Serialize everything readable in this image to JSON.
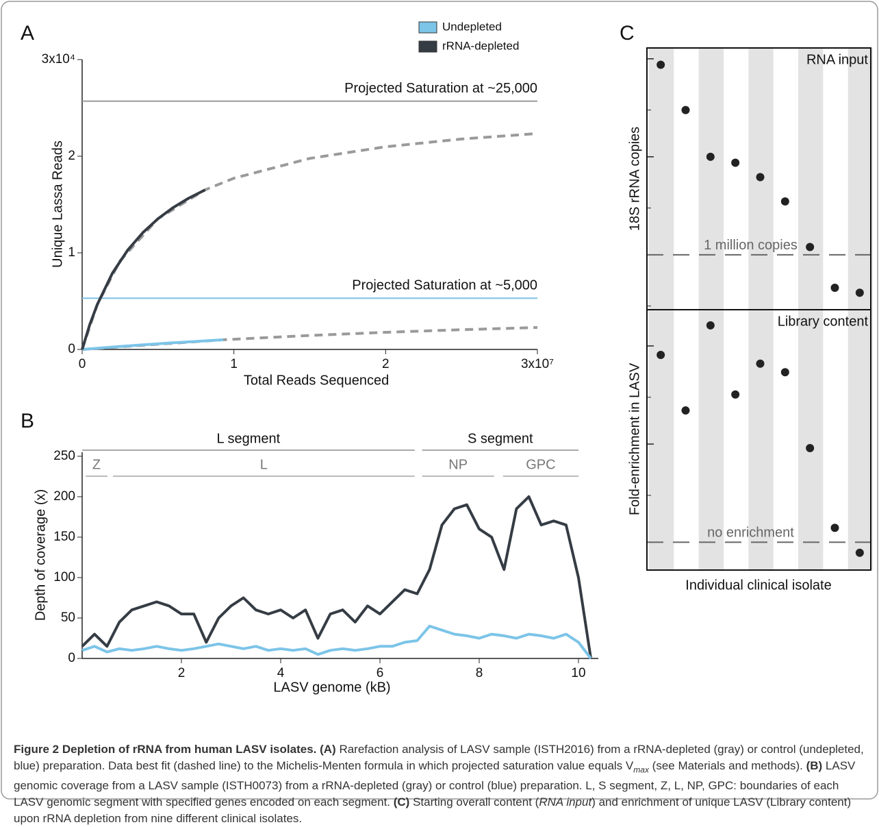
{
  "chart_data": [
    {
      "type": "line",
      "panel_label": "A",
      "x_label": "Total Reads Sequenced",
      "y_label": "Unique Lassa Reads",
      "xlim": [
        0,
        3
      ],
      "ylim": [
        0,
        3
      ],
      "xticks": [
        0,
        1,
        2,
        {
          "value": 3,
          "label": "3x10⁷"
        }
      ],
      "yticks": [
        0,
        1,
        2,
        {
          "value": 3,
          "label": "3x10⁴"
        }
      ],
      "legend": "top",
      "reference_lines": [
        {
          "label": "Projected Saturation at ~25,000",
          "value": 2.57,
          "color": "#9a9a9a"
        },
        {
          "label": "Projected Saturation at ~5,000",
          "value": 0.53,
          "color": "#7cc4e8"
        }
      ],
      "series": [
        {
          "color": "#9a9a9a",
          "dash": true,
          "x": [
            0,
            0.1,
            0.25,
            0.5,
            0.81,
            1,
            1.5,
            2,
            2.5,
            3
          ],
          "values": [
            0,
            0.467,
            0.918,
            1.353,
            1.652,
            1.772,
            1.977,
            2.098,
            2.178,
            2.235
          ]
        },
        {
          "color": "#9a9a9a",
          "dash": true,
          "x": [
            0,
            0.93,
            1.5,
            2,
            2.5,
            3
          ],
          "values": [
            0,
            0.1,
            0.145,
            0.177,
            0.204,
            0.227
          ]
        },
        {
          "name": "Undepleted",
          "color": "#7cc4e8",
          "x": [
            0,
            0.2,
            0.4,
            0.6,
            0.8,
            0.93
          ],
          "values": [
            0,
            0.025,
            0.048,
            0.069,
            0.088,
            0.1
          ]
        },
        {
          "name": "rRNA-depleted",
          "color": "#353c44",
          "x": [
            0,
            0.05,
            0.1,
            0.2,
            0.3,
            0.4,
            0.5,
            0.6,
            0.7,
            0.81
          ],
          "values": [
            0,
            0.257,
            0.467,
            0.791,
            1.028,
            1.209,
            1.353,
            1.469,
            1.564,
            1.652
          ]
        }
      ]
    },
    {
      "type": "line",
      "panel_label": "B",
      "x_label": "LASV genome (kB)",
      "y_label": "Depth of coverage (x)",
      "xlim": [
        0,
        10.4
      ],
      "ylim": [
        0,
        255
      ],
      "xticks": [
        2,
        4,
        6,
        8,
        10
      ],
      "yticks": [
        0,
        50,
        100,
        150,
        200,
        250
      ],
      "segments": [
        {
          "label": "L segment",
          "start": 0,
          "end": 6.7
        },
        {
          "label": "S segment",
          "start": 6.85,
          "end": 10.0
        }
      ],
      "genes": [
        {
          "label": "Z",
          "start": 0.07,
          "end": 0.51
        },
        {
          "label": "L",
          "start": 0.62,
          "end": 6.7
        },
        {
          "label": "NP",
          "start": 6.85,
          "end": 8.3
        },
        {
          "label": "GPC",
          "start": 8.48,
          "end": 10.0
        }
      ],
      "series": [
        {
          "color": "#353c44",
          "x": [
            0,
            0.25,
            0.5,
            0.75,
            1,
            1.25,
            1.5,
            1.75,
            2,
            2.25,
            2.5,
            2.75,
            3,
            3.25,
            3.5,
            3.75,
            4,
            4.25,
            4.5,
            4.75,
            5,
            5.25,
            5.5,
            5.75,
            6,
            6.25,
            6.5,
            6.75,
            7,
            7.25,
            7.5,
            7.75,
            8,
            8.25,
            8.5,
            8.75,
            9,
            9.25,
            9.5,
            9.75,
            10,
            10.25
          ],
          "values": [
            15,
            30,
            15,
            45,
            60,
            65,
            70,
            65,
            55,
            55,
            20,
            50,
            65,
            75,
            60,
            55,
            60,
            50,
            60,
            25,
            55,
            60,
            45,
            65,
            55,
            70,
            85,
            80,
            110,
            165,
            185,
            190,
            160,
            150,
            110,
            185,
            200,
            165,
            170,
            165,
            100,
            0
          ]
        },
        {
          "color": "#7cc4e8",
          "x": [
            0,
            0.25,
            0.5,
            0.75,
            1,
            1.25,
            1.5,
            1.75,
            2,
            2.25,
            2.5,
            2.75,
            3,
            3.25,
            3.5,
            3.75,
            4,
            4.25,
            4.5,
            4.75,
            5,
            5.25,
            5.5,
            5.75,
            6,
            6.25,
            6.5,
            6.75,
            7,
            7.25,
            7.5,
            7.75,
            8,
            8.25,
            8.5,
            8.75,
            9,
            9.25,
            9.5,
            9.75,
            10,
            10.25
          ],
          "values": [
            10,
            15,
            8,
            12,
            10,
            12,
            15,
            12,
            10,
            12,
            15,
            18,
            15,
            12,
            15,
            10,
            12,
            10,
            12,
            5,
            10,
            12,
            10,
            12,
            15,
            15,
            20,
            22,
            40,
            35,
            30,
            28,
            25,
            30,
            28,
            25,
            30,
            28,
            25,
            30,
            20,
            0
          ]
        }
      ]
    },
    {
      "type": "dot",
      "panel_label": "C",
      "y_label": "18S rRNA copies",
      "annotation": "RNA input",
      "log_y": true,
      "ylim": [
        275000,
        129000000
      ],
      "yticks": [
        1000000,
        10000000,
        100000000
      ],
      "minor_yticks": [
        300000,
        3000000,
        30000000
      ],
      "reference_lines": [
        {
          "label": "1 million copies",
          "value": 1000000,
          "color": "#666666"
        }
      ],
      "categories": [
        null,
        null,
        null,
        null,
        null,
        null,
        null,
        null,
        null
      ],
      "values": [
        87000000,
        30000000,
        10000000,
        8700000,
        6200000,
        3500000,
        1200000,
        460000,
        410000
      ],
      "color": "#222222"
    },
    {
      "type": "dot",
      "x_label": "Individual clinical isolate",
      "y_label": "Fold-enrichment in LASV",
      "annotation": "Library content",
      "log_y": true,
      "ylim": [
        0.52,
        234
      ],
      "yticks": [
        1,
        10,
        100
      ],
      "minor_yticks": [
        3,
        30
      ],
      "reference_lines": [
        {
          "label": "no enrichment",
          "value": 1,
          "color": "#666666"
        }
      ],
      "categories": [
        null,
        null,
        null,
        null,
        null,
        null,
        null,
        null,
        null
      ],
      "values": [
        81,
        22,
        162,
        32,
        66,
        54,
        9.1,
        1.4,
        0.78
      ],
      "color": "#222222"
    }
  ],
  "figure_caption": {
    "segments": [
      {
        "text": "Figure 2 Depletion of rRNA from human LASV isolates.",
        "style": "bold"
      },
      {
        "text": " ",
        "style": "normal"
      },
      {
        "text": "(A)",
        "style": "bold"
      },
      {
        "text": " Rarefaction analysis of LASV sample (ISTH2016) from a rRNA-depleted (gray) or control (undepleted, blue) preparation. Data best fit (dashed line) to the Michelis-Menten formula in which projected saturation value equals V",
        "style": "normal"
      },
      {
        "text": "max",
        "style": "sub"
      },
      {
        "text": " (see Materials and methods). ",
        "style": "normal"
      },
      {
        "text": "(B)",
        "style": "bold"
      },
      {
        "text": " LASV genomic coverage from a LASV sample (ISTH0073) from a rRNA-depleted (gray) or control (blue) preparation. L, S segment, Z, L, NP, GPC: boundaries of each LASV genomic segment with specified genes encoded on each segment. ",
        "style": "normal"
      },
      {
        "text": "(C)",
        "style": "bold"
      },
      {
        "text": " Starting overall content (",
        "style": "normal"
      },
      {
        "text": "RNA input",
        "style": "italic"
      },
      {
        "text": ") and enrichment of unique LASV (Library content) upon rRNA depletion from nine different clinical isolates.",
        "style": "normal"
      }
    ]
  }
}
